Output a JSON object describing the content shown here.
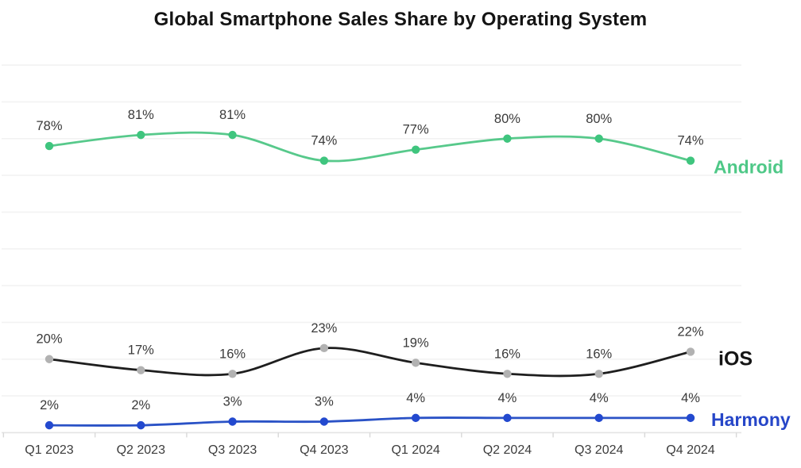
{
  "title": "Global Smartphone Sales Share by Operating System",
  "chart_data": {
    "type": "line",
    "title": "Global Smartphone Sales Share by Operating System",
    "categories": [
      "Q1 2023",
      "Q2 2023",
      "Q3 2023",
      "Q4 2023",
      "Q1 2024",
      "Q2 2024",
      "Q3 2024",
      "Q4 2024"
    ],
    "series": [
      {
        "name": "Android",
        "values": [
          78,
          81,
          81,
          74,
          77,
          80,
          80,
          74
        ],
        "line_color": "#57c98b",
        "marker_color": "#3fc57e",
        "name_color": "#4ec887"
      },
      {
        "name": "iOS",
        "values": [
          20,
          17,
          16,
          23,
          19,
          16,
          16,
          22
        ],
        "line_color": "#1e1e1e",
        "marker_color": "#b2b2b2",
        "name_color": "#141414"
      },
      {
        "name": "Harmony",
        "values": [
          2,
          2,
          3,
          3,
          4,
          4,
          4,
          4
        ],
        "line_color": "#2a52c6",
        "marker_color": "#2349cf",
        "name_color": "#2646c8"
      }
    ],
    "ylim": [
      0,
      100
    ],
    "y_gridline_step": 10,
    "y_axis_labels_shown": false,
    "x_axis_labels_shown": true,
    "data_labels": "percent-above-each-point",
    "data_label_suffix": "%",
    "legend_position": "series-name-at-line-end",
    "smooth": true,
    "grid": "horizontal-only"
  },
  "styles": {
    "background": "#ffffff",
    "gridline_color": "#f2f2f2",
    "axis_line_color": "#e4e4e4",
    "tick_color": "#d8d8d8",
    "data_label_color": "#3a3a3a",
    "x_label_color": "#3c3c3c",
    "title_color": "#141414"
  }
}
